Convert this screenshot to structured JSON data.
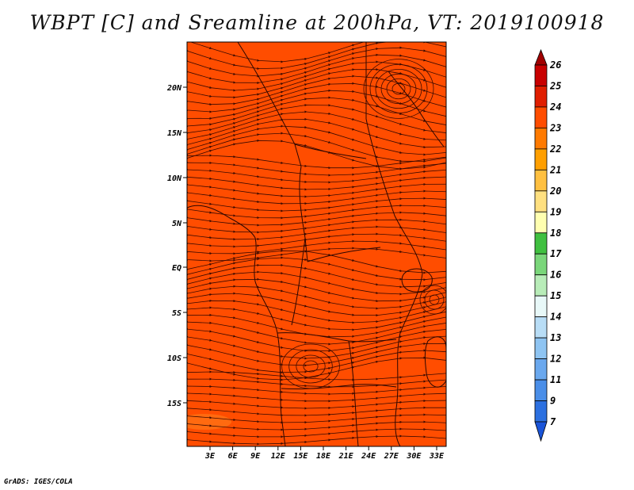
{
  "title": "WBPT [C] and Sreamline at 200hPa, VT: 2019100918",
  "credit": "GrADS: IGES/COLA",
  "map": {
    "fill_color": "#ff4d00",
    "warm_patch_color": "#ff6a10",
    "line_color": "#3a0a00",
    "lat_ticks": [
      "20N",
      "15N",
      "10N",
      "5N",
      "EQ",
      "5S",
      "10S",
      "15S"
    ],
    "lon_ticks": [
      "3E",
      "6E",
      "9E",
      "12E",
      "15E",
      "18E",
      "21E",
      "24E",
      "27E",
      "30E",
      "33E"
    ]
  },
  "colorbar": {
    "labels": [
      "26",
      "25",
      "24",
      "23",
      "22",
      "21",
      "20",
      "19",
      "18",
      "17",
      "16",
      "15",
      "14",
      "13",
      "12",
      "11",
      "9",
      "7"
    ],
    "colors": [
      "#a10000",
      "#c80000",
      "#e01e00",
      "#ff4d00",
      "#ff7a00",
      "#ff9f00",
      "#ffc040",
      "#ffe080",
      "#ffffb0",
      "#40c040",
      "#7ad67a",
      "#b8ecb8",
      "#e8f8f8",
      "#b8ddf6",
      "#8ec4f2",
      "#6aa8ee",
      "#4a8ee8",
      "#2c70e0",
      "#1a54d8"
    ]
  }
}
